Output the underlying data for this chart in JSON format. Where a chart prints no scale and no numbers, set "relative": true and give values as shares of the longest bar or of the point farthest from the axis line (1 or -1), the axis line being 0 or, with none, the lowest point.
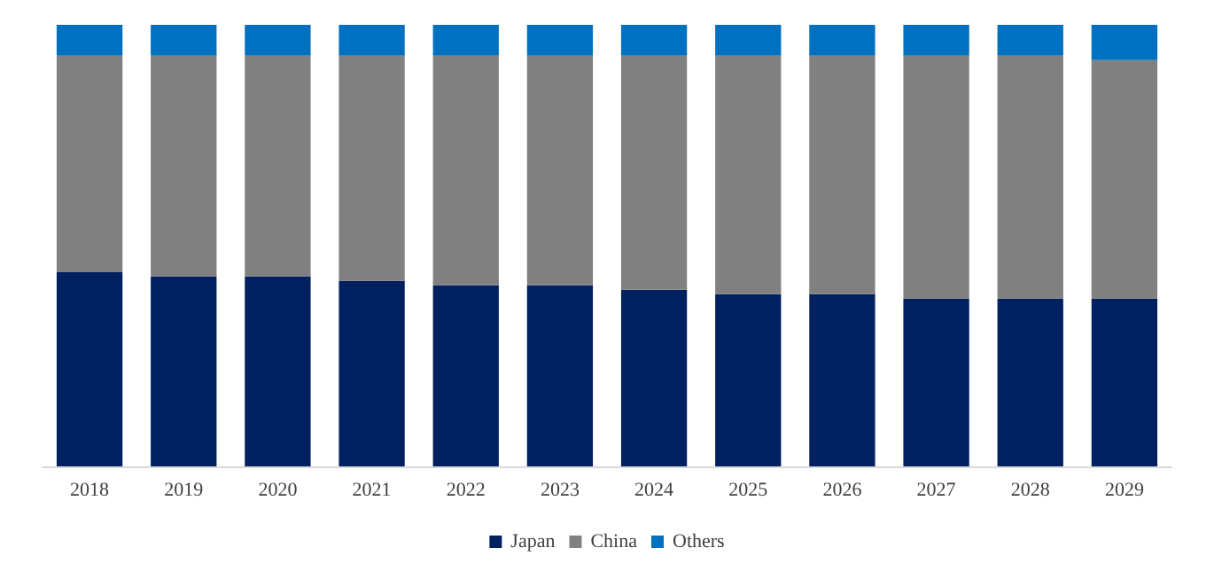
{
  "chart_data": {
    "type": "bar",
    "stacked": true,
    "relative": true,
    "legend": "bottom",
    "categories": [
      "2018",
      "2019",
      "2020",
      "2021",
      "2022",
      "2023",
      "2024",
      "2025",
      "2026",
      "2027",
      "2028",
      "2029"
    ],
    "series": [
      {
        "name": "Japan",
        "color": "#002060",
        "values": [
          0.44,
          0.43,
          0.43,
          0.42,
          0.41,
          0.41,
          0.4,
          0.39,
          0.39,
          0.38,
          0.38,
          0.38
        ]
      },
      {
        "name": "China",
        "color": "#808080",
        "values": [
          0.49,
          0.5,
          0.5,
          0.51,
          0.52,
          0.52,
          0.53,
          0.54,
          0.54,
          0.55,
          0.55,
          0.54
        ]
      },
      {
        "name": "Others",
        "color": "#0070c0",
        "values": [
          0.07,
          0.07,
          0.07,
          0.07,
          0.07,
          0.07,
          0.07,
          0.07,
          0.07,
          0.07,
          0.07,
          0.08
        ]
      }
    ]
  }
}
